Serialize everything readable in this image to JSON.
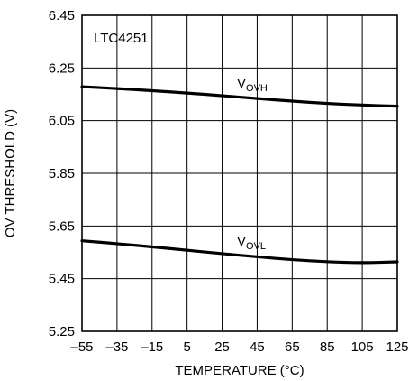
{
  "chart_data": {
    "type": "line",
    "title": "",
    "annotation": "LTC4251",
    "xlabel": "TEMPERATURE (°C)",
    "ylabel": "OV THRESHOLD (V)",
    "xlim": [
      -55,
      125
    ],
    "ylim": [
      5.25,
      6.45
    ],
    "xticks": [
      -55,
      -35,
      -15,
      5,
      25,
      45,
      65,
      85,
      105,
      125
    ],
    "yticks": [
      5.25,
      5.45,
      5.65,
      5.85,
      6.05,
      6.25,
      6.45
    ],
    "xtick_labels": [
      "–55",
      "–35",
      "–15",
      "5",
      "25",
      "45",
      "65",
      "85",
      "105",
      "125"
    ],
    "ytick_labels": [
      "5.25",
      "5.45",
      "5.65",
      "5.85",
      "6.05",
      "6.25",
      "6.45"
    ],
    "grid": true,
    "series": [
      {
        "name": "VOVH",
        "label_main": "V",
        "label_sub": "OVH",
        "x": [
          -55,
          -35,
          -15,
          5,
          25,
          45,
          65,
          85,
          105,
          125
        ],
        "y": [
          6.179,
          6.172,
          6.164,
          6.155,
          6.145,
          6.134,
          6.124,
          6.115,
          6.109,
          6.105
        ]
      },
      {
        "name": "VOVL",
        "label_main": "V",
        "label_sub": "OVL",
        "x": [
          -55,
          -35,
          -15,
          5,
          25,
          45,
          65,
          85,
          105,
          125
        ],
        "y": [
          5.594,
          5.583,
          5.571,
          5.558,
          5.545,
          5.533,
          5.522,
          5.514,
          5.51,
          5.514
        ]
      }
    ]
  }
}
